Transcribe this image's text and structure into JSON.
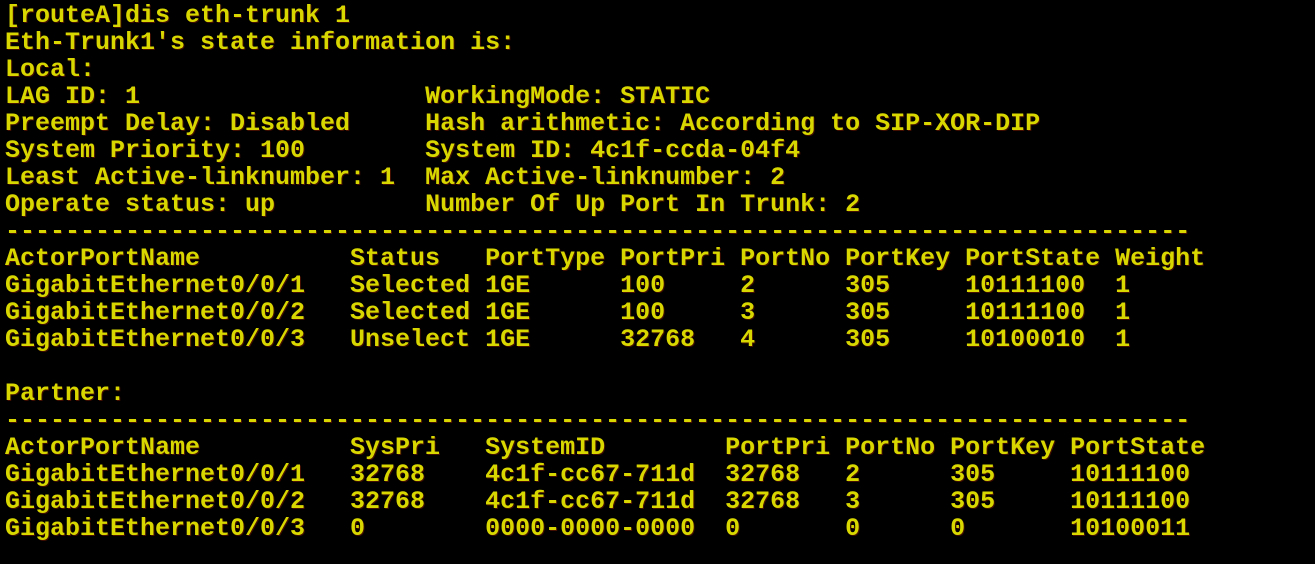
{
  "colors": {
    "background": "#000000",
    "text": "#d8d800"
  },
  "command_line": "[routeA]dis eth-trunk 1",
  "state_line": "Eth-Trunk1's state information is:",
  "local": {
    "label": "Local:",
    "fields": [
      {
        "left": "LAG ID: 1",
        "right": "WorkingMode: STATIC"
      },
      {
        "left": "Preempt Delay: Disabled",
        "right": "Hash arithmetic: According to SIP-XOR-DIP"
      },
      {
        "left": "System Priority: 100",
        "right": "System ID: 4c1f-ccda-04f4"
      },
      {
        "left": "Least Active-linknumber: 1",
        "right": "Max Active-linknumber: 2"
      },
      {
        "left": "Operate status: up",
        "right": "Number Of Up Port In Trunk: 2"
      }
    ]
  },
  "separator": "-------------------------------------------------------------------------------",
  "local_table": {
    "headers": [
      "ActorPortName",
      "Status",
      "PortType",
      "PortPri",
      "PortNo",
      "PortKey",
      "PortState",
      "Weight"
    ],
    "rows": [
      [
        "GigabitEthernet0/0/1",
        "Selected",
        "1GE",
        "100",
        "2",
        "305",
        "10111100",
        "1"
      ],
      [
        "GigabitEthernet0/0/2",
        "Selected",
        "1GE",
        "100",
        "3",
        "305",
        "10111100",
        "1"
      ],
      [
        "GigabitEthernet0/0/3",
        "Unselect",
        "1GE",
        "32768",
        "4",
        "305",
        "10100010",
        "1"
      ]
    ]
  },
  "partner": {
    "label": "Partner:"
  },
  "partner_table": {
    "headers": [
      "ActorPortName",
      "SysPri",
      "SystemID",
      "PortPri",
      "PortNo",
      "PortKey",
      "PortState"
    ],
    "rows": [
      [
        "GigabitEthernet0/0/1",
        "32768",
        "4c1f-cc67-711d",
        "32768",
        "2",
        "305",
        "10111100"
      ],
      [
        "GigabitEthernet0/0/2",
        "32768",
        "4c1f-cc67-711d",
        "32768",
        "3",
        "305",
        "10111100"
      ],
      [
        "GigabitEthernet0/0/3",
        "0",
        "0000-0000-0000",
        "0",
        "0",
        "0",
        "10100011"
      ]
    ]
  }
}
